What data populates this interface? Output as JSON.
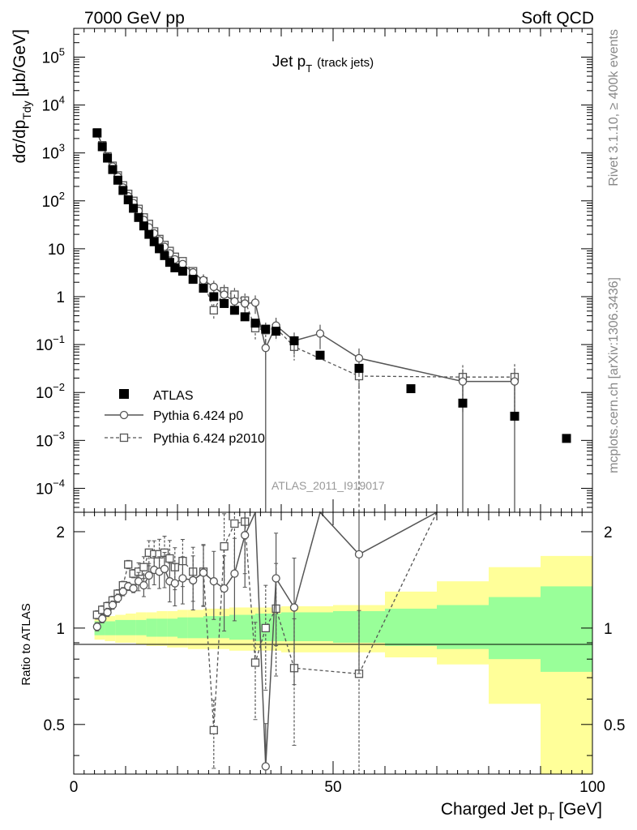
{
  "header": {
    "left": "7000 GeV pp",
    "right": "Soft QCD"
  },
  "side_labels": {
    "top": "Rivet 3.1.10, ≥ 400k events",
    "bottom": "mcplots.cern.ch [arXiv:1306.3436]"
  },
  "watermark": "ATLAS_2011_I919017",
  "chart_data": {
    "type": "scatter",
    "title": {
      "main": "Jet p",
      "sub": "T",
      "note": "(track jets)"
    },
    "xlabel": {
      "main": "Charged Jet p",
      "sub": "T",
      "unit": "[GeV]"
    },
    "ylabel": {
      "main": "dσ/dp",
      "sub": "Tdy",
      "unit": "[μb/GeV]"
    },
    "ratio_ylabel": "Ratio to ATLAS",
    "xlim": [
      0,
      100
    ],
    "ylim_log": [
      -4.5,
      5.6
    ],
    "ratio_ylim": [
      0.35,
      2.3
    ],
    "x_ticks": [
      {
        "value": 0,
        "label": "0"
      },
      {
        "value": 50,
        "label": "50"
      },
      {
        "value": 100,
        "label": "100"
      }
    ],
    "y_ticks": [
      {
        "exp": 5,
        "label": "10",
        "sup": "5"
      },
      {
        "exp": 4,
        "label": "10",
        "sup": "4"
      },
      {
        "exp": 3,
        "label": "10",
        "sup": "3"
      },
      {
        "exp": 2,
        "label": "10",
        "sup": "2"
      },
      {
        "exp": 1,
        "label": "10",
        "sup": ""
      },
      {
        "exp": 0,
        "label": "1",
        "sup": ""
      },
      {
        "exp": -1,
        "label": "10",
        "sup": "−1"
      },
      {
        "exp": -2,
        "label": "10",
        "sup": "−2"
      },
      {
        "exp": -3,
        "label": "10",
        "sup": "−3"
      },
      {
        "exp": -4,
        "label": "10",
        "sup": "−4"
      }
    ],
    "ratio_ticks": [
      {
        "value": 2,
        "label": "2"
      },
      {
        "value": 1,
        "label": "1"
      },
      {
        "value": 0.5,
        "label": "0.5"
      }
    ],
    "legend": {
      "placement": "lower-left",
      "entries": [
        "ATLAS",
        "Pythia 6.424 p0",
        "Pythia 6.424 p2010"
      ]
    },
    "series": [
      {
        "name": "ATLAS",
        "style": "filled-square",
        "x": [
          4.5,
          5.5,
          6.5,
          7.5,
          8.5,
          9.5,
          10.5,
          11.5,
          12.5,
          13.5,
          14.5,
          15.5,
          16.5,
          17.5,
          18.5,
          19.5,
          21,
          23,
          25,
          27,
          29,
          31,
          33,
          35,
          37,
          39,
          42.5,
          47.5,
          55,
          65,
          75,
          85,
          95
        ],
        "y": [
          2600,
          1350,
          780,
          450,
          270,
          165,
          105,
          70,
          45,
          30,
          20,
          14,
          10,
          7.2,
          5.2,
          4.0,
          3.4,
          2.3,
          1.5,
          1.0,
          0.72,
          0.52,
          0.38,
          0.28,
          0.21,
          0.19,
          0.12,
          0.06,
          0.032,
          0.012,
          0.006,
          0.0032,
          0.0011
        ]
      },
      {
        "name": "Pythia 6.424 p0",
        "style": "open-circle-solid",
        "x": [
          4.5,
          5.5,
          6.5,
          7.5,
          8.5,
          9.5,
          10.5,
          11.5,
          12.5,
          13.5,
          14.5,
          15.5,
          16.5,
          17.5,
          18.5,
          19.5,
          21,
          23,
          25,
          27,
          29,
          31,
          33,
          35,
          37,
          39,
          42.5,
          47.5,
          55,
          75,
          85
        ],
        "y": [
          2620,
          1450,
          830,
          520,
          320,
          190,
          125,
          90,
          62,
          40,
          28,
          21,
          15,
          11,
          8,
          6,
          4.8,
          3.2,
          2.2,
          1.6,
          1.1,
          0.8,
          0.72,
          0.75,
          0.085,
          0.25,
          0.12,
          0.17,
          0.052,
          0.017,
          0.017
        ]
      },
      {
        "name": "Pythia 6.424 p2010",
        "style": "open-square-dashed",
        "x": [
          4.5,
          5.5,
          6.5,
          7.5,
          8.5,
          9.5,
          10.5,
          11.5,
          12.5,
          13.5,
          14.5,
          15.5,
          16.5,
          17.5,
          18.5,
          19.5,
          21,
          23,
          25,
          27,
          29,
          31,
          33,
          35,
          37,
          39,
          42.5,
          55,
          75,
          85
        ],
        "y": [
          2700,
          1450,
          850,
          540,
          340,
          210,
          140,
          100,
          68,
          45,
          33,
          23,
          16,
          12,
          9,
          6.8,
          5.5,
          3.4,
          2.1,
          0.52,
          1.3,
          1.1,
          0.83,
          0.22,
          0.2,
          0.22,
          0.09,
          0.022,
          0.021,
          0.021
        ]
      }
    ],
    "ratio_series": [
      {
        "name": "Pythia 6.424 p0",
        "x": [
          4.5,
          5.5,
          6.5,
          7.5,
          8.5,
          9.5,
          10.5,
          11.5,
          12.5,
          13.5,
          14.5,
          15.5,
          16.5,
          17.5,
          18.5,
          19.5,
          21,
          23,
          25,
          27,
          29,
          31,
          33,
          35,
          37,
          39,
          42.5,
          47.5,
          55,
          70
        ],
        "y": [
          1.01,
          1.07,
          1.12,
          1.18,
          1.24,
          1.3,
          1.35,
          1.33,
          1.4,
          1.36,
          1.46,
          1.52,
          1.5,
          1.53,
          1.4,
          1.38,
          1.43,
          1.41,
          1.49,
          1.4,
          1.33,
          1.48,
          1.95,
          2.9,
          0.37,
          1.43,
          1.16,
          3.0,
          1.7,
          2.45
        ]
      },
      {
        "name": "Pythia 6.424 p2010",
        "x": [
          4.5,
          5.5,
          6.5,
          7.5,
          8.5,
          9.5,
          10.5,
          11.5,
          12.5,
          13.5,
          14.5,
          15.5,
          16.5,
          17.5,
          18.5,
          19.5,
          21,
          23,
          25,
          27,
          29,
          31,
          33,
          35,
          37,
          39,
          42.5,
          55,
          70
        ],
        "y": [
          1.1,
          1.14,
          1.17,
          1.22,
          1.28,
          1.36,
          1.58,
          1.48,
          1.5,
          1.55,
          1.72,
          1.7,
          1.7,
          1.72,
          1.65,
          1.55,
          1.62,
          1.5,
          1.5,
          0.48,
          1.8,
          2.12,
          2.15,
          0.78,
          1.0,
          1.15,
          0.75,
          0.72,
          2.45
        ]
      }
    ],
    "ratio_bands": {
      "edges": [
        4,
        6,
        8,
        10,
        12,
        14,
        16,
        18,
        20,
        22,
        25,
        30,
        35,
        40,
        50,
        60,
        70,
        80,
        90,
        100
      ],
      "stat_lo": [
        0.95,
        0.95,
        0.95,
        0.95,
        0.95,
        0.94,
        0.94,
        0.94,
        0.93,
        0.93,
        0.93,
        0.92,
        0.91,
        0.91,
        0.9,
        0.88,
        0.86,
        0.8,
        0.73
      ],
      "stat_hi": [
        1.05,
        1.05,
        1.06,
        1.06,
        1.06,
        1.07,
        1.07,
        1.07,
        1.08,
        1.08,
        1.09,
        1.1,
        1.11,
        1.12,
        1.13,
        1.15,
        1.18,
        1.25,
        1.35
      ],
      "tot_lo": [
        0.92,
        0.91,
        0.9,
        0.9,
        0.89,
        0.88,
        0.88,
        0.87,
        0.87,
        0.86,
        0.86,
        0.85,
        0.85,
        0.84,
        0.84,
        0.81,
        0.77,
        0.58,
        0.3
      ],
      "tot_hi": [
        1.08,
        1.09,
        1.1,
        1.11,
        1.12,
        1.12,
        1.13,
        1.13,
        1.14,
        1.14,
        1.15,
        1.16,
        1.16,
        1.17,
        1.18,
        1.3,
        1.4,
        1.55,
        1.68
      ]
    },
    "colors": {
      "stat_band": "#99ff99",
      "total_band": "#ffff99",
      "mc": "#555555",
      "data": "#000000"
    }
  }
}
